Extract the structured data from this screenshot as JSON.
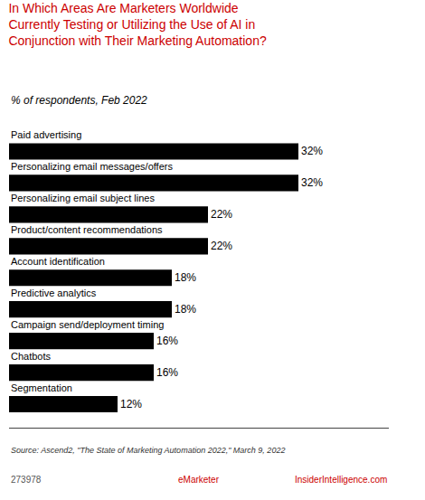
{
  "chart_data": {
    "type": "bar",
    "orientation": "horizontal",
    "title": "In Which Areas Are Marketers Worldwide\nCurrently Testing or Utilizing the Use of AI in\nConjunction with Their Marketing Automation?",
    "subtitle": "% of respondents, Feb 2022",
    "categories": [
      "Paid advertising",
      "Personalizing email messages/offers",
      "Personalizing email subject lines",
      "Product/content recommendations",
      "Account identification",
      "Predictive analytics",
      "Campaign send/deployment timing",
      "Chatbots",
      "Segmentation"
    ],
    "values": [
      32,
      32,
      22,
      22,
      18,
      18,
      16,
      16,
      12
    ],
    "value_labels": [
      "32%",
      "32%",
      "22%",
      "22%",
      "18%",
      "18%",
      "16%",
      "16%",
      "12%"
    ],
    "data_labels": true,
    "color": "#000000",
    "xlim": [
      0,
      42
    ],
    "xticks": [],
    "grid": false,
    "tick_labels": false,
    "annotations": [
      "Source: Ascend2, \"The State of Marketing Automation 2022,\" March 9, 2022",
      "273978",
      "eMarketer",
      "InsiderIntelligence.com"
    ]
  }
}
